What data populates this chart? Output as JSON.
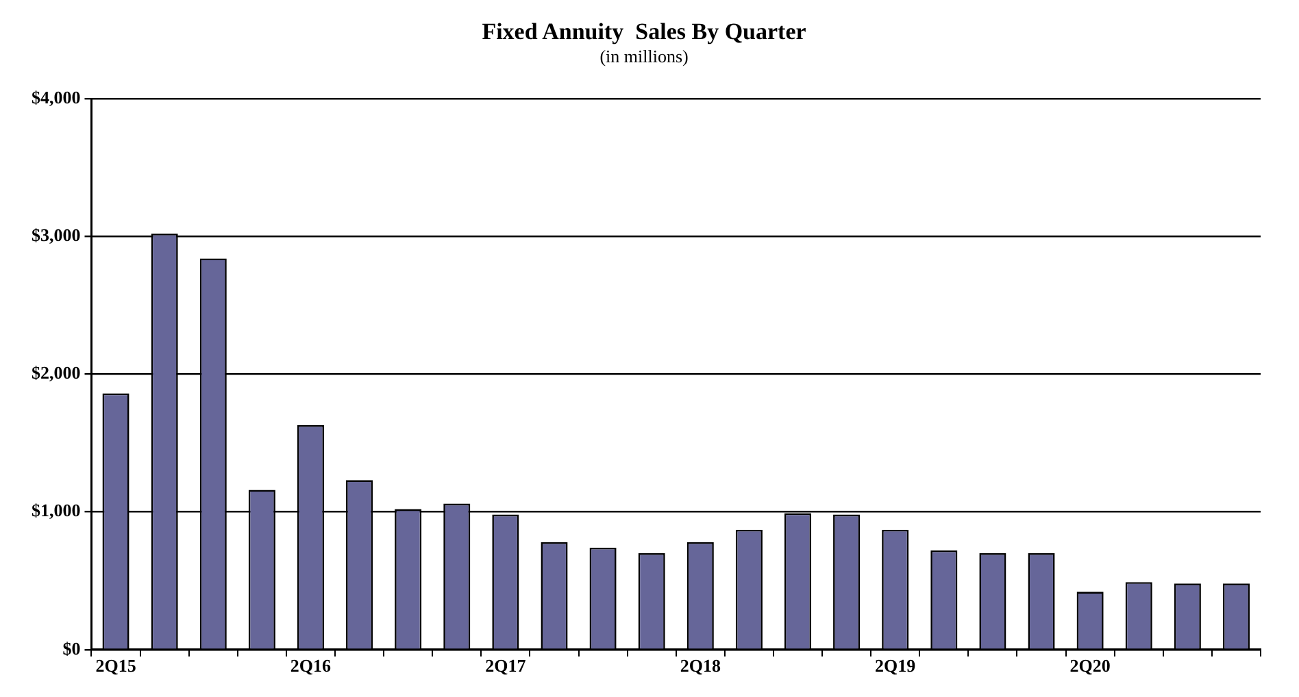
{
  "chart_data": {
    "type": "bar",
    "title": "Fixed Annuity  Sales By Quarter",
    "subtitle": "(in millions)",
    "categories": [
      "2Q15",
      null,
      null,
      null,
      "2Q16",
      null,
      null,
      null,
      "2Q17",
      null,
      null,
      null,
      "2Q18",
      null,
      null,
      null,
      "2Q19",
      null,
      null,
      null,
      "2Q20",
      null,
      null,
      null
    ],
    "values": [
      1860,
      3020,
      2840,
      1160,
      1630,
      1230,
      1020,
      1060,
      980,
      780,
      740,
      700,
      780,
      870,
      990,
      980,
      870,
      720,
      700,
      700,
      420,
      490,
      480,
      480
    ],
    "color": "#666699",
    "ylim": [
      0,
      4000
    ],
    "yticks": [
      {
        "value": 0,
        "label": "$0"
      },
      {
        "value": 1000,
        "label": "$1,000"
      },
      {
        "value": 2000,
        "label": "$2,000"
      },
      {
        "value": 3000,
        "label": "$3,000"
      },
      {
        "value": 4000,
        "label": "$4,000"
      }
    ],
    "grid": "y",
    "legend": false
  }
}
